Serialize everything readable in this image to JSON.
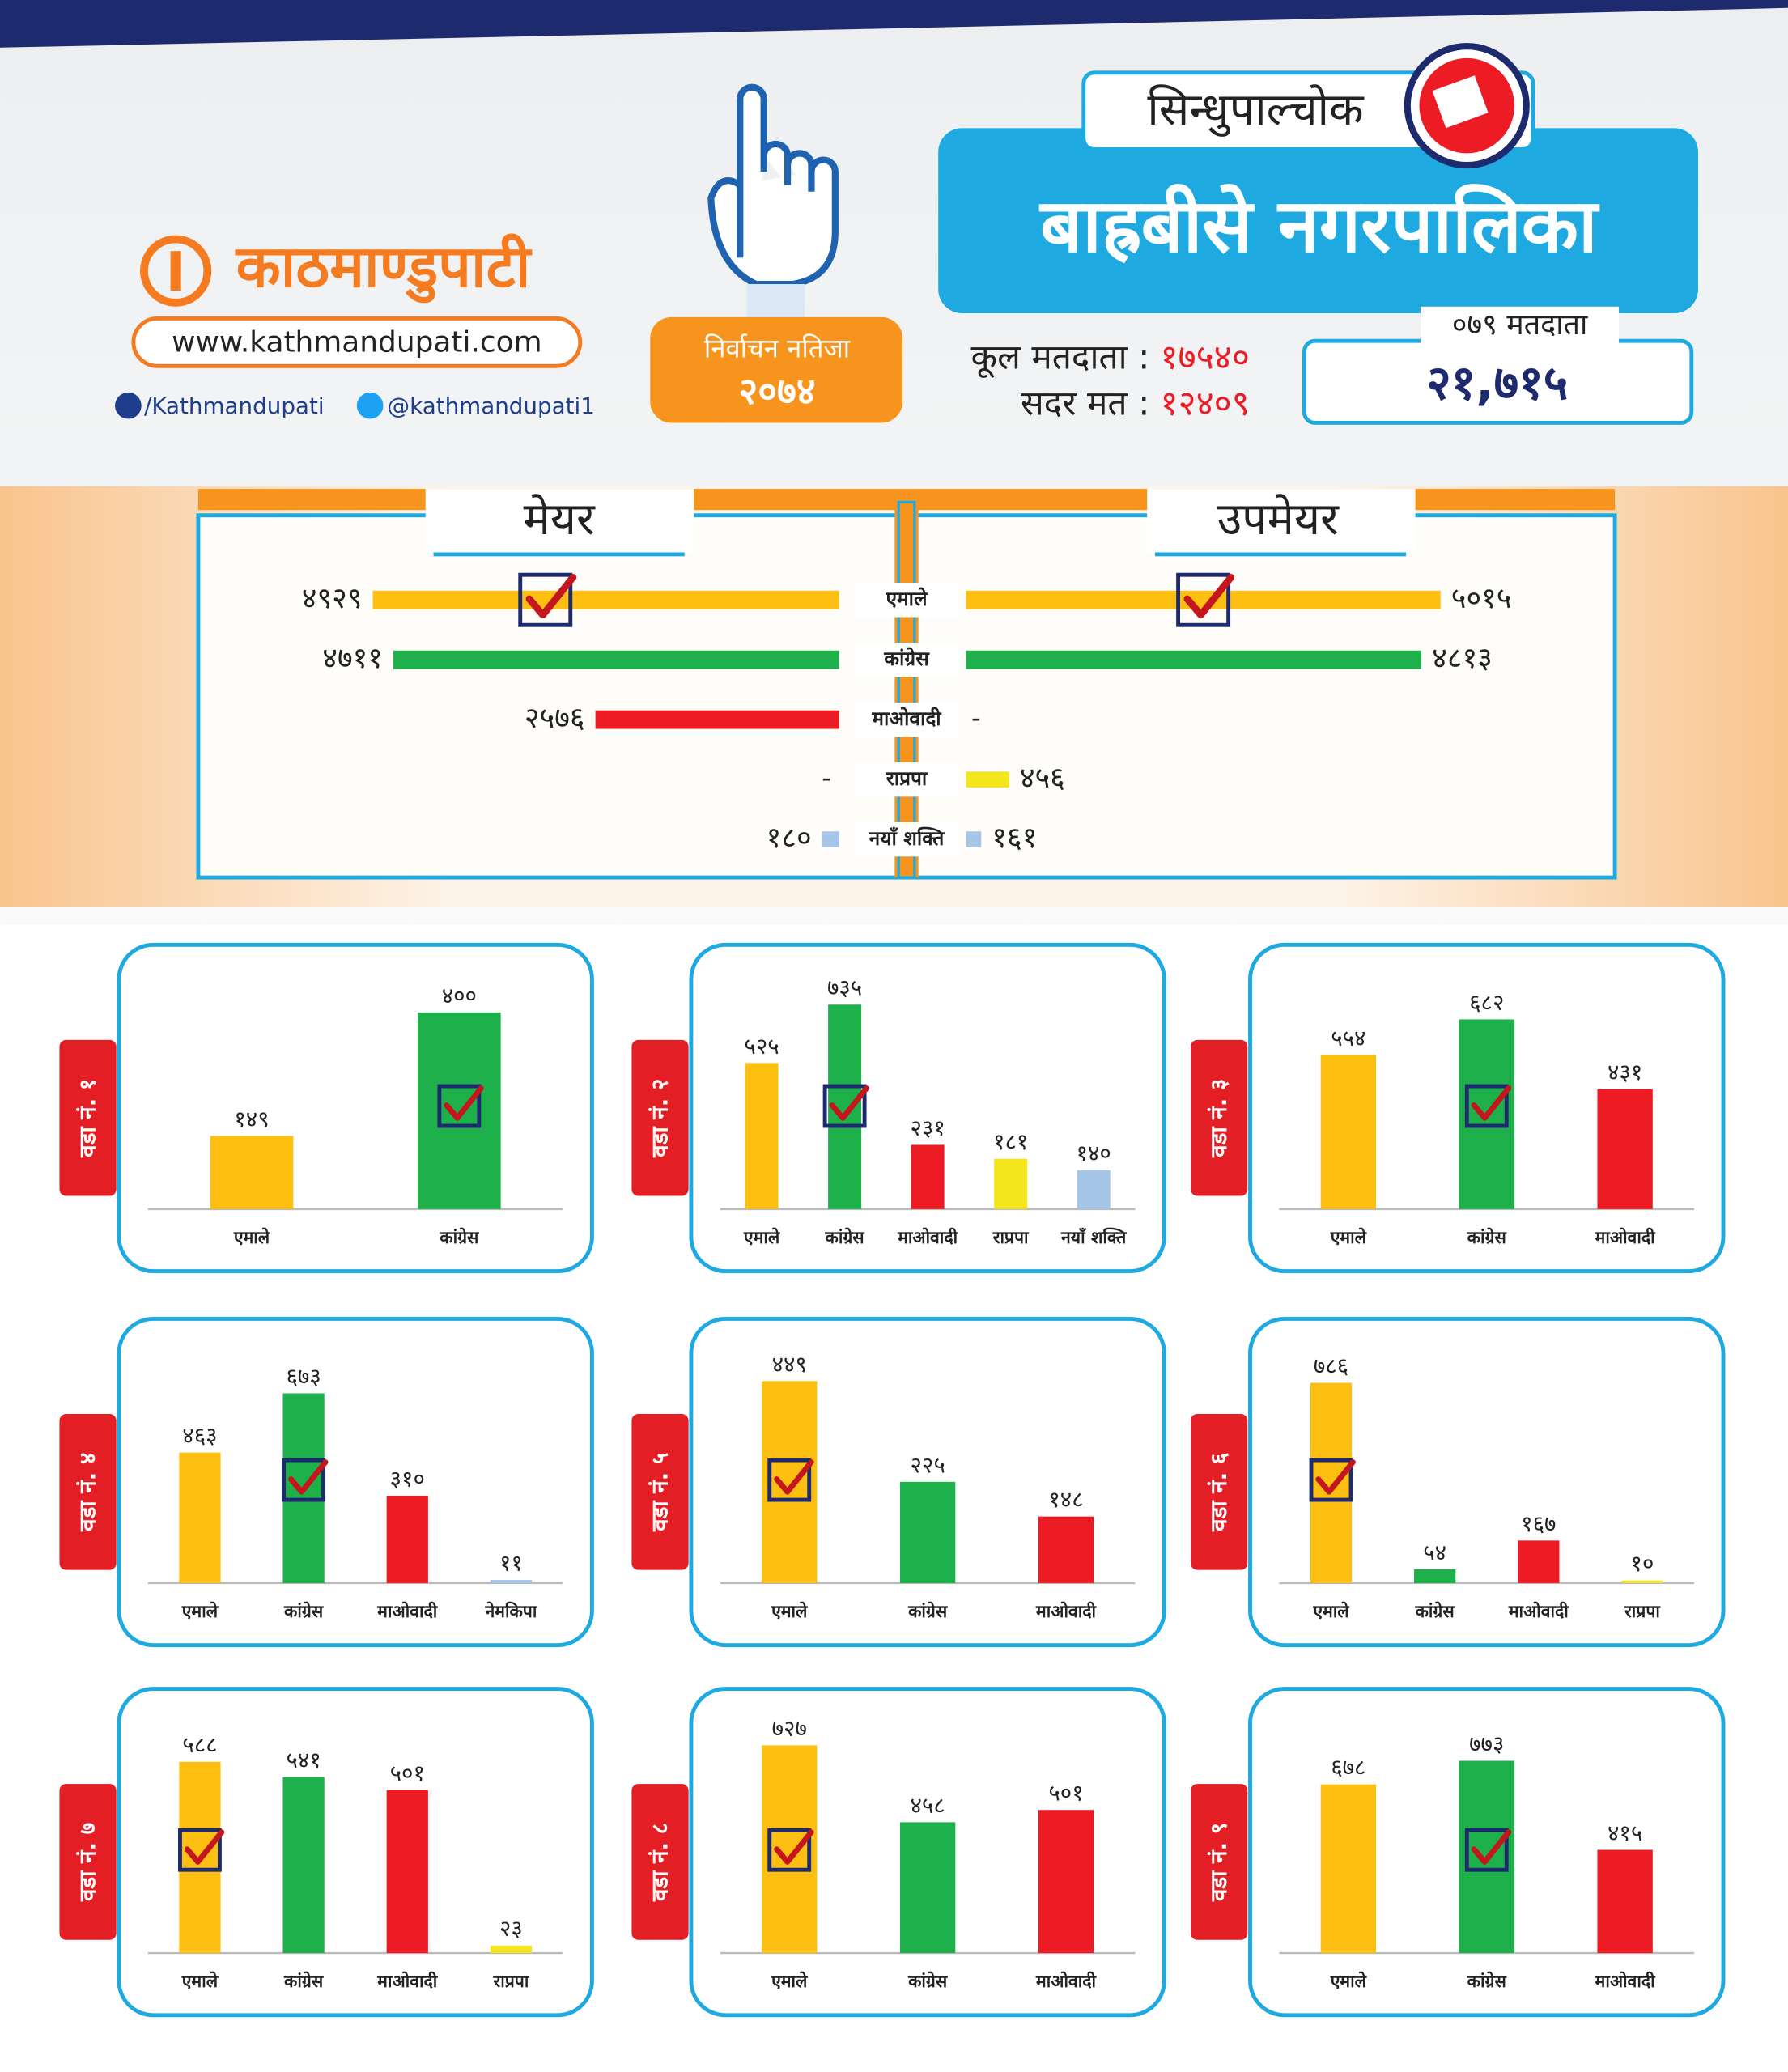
{
  "header": {
    "logo": "काठमाण्डुपाटी",
    "website": "www.kathmandupati.com",
    "facebook": "/Kathmandupati",
    "twitter": "@kathmandupati1",
    "badge_title": "निर्वाचन नतिजा",
    "badge_year": "२०७४",
    "district": "सिन्धुपाल्चोक",
    "municipality": "बाह्रबीसे नगरपालिका",
    "total_voters_label": "कूल मतदाता :",
    "total_voters": "१७५४०",
    "valid_votes_label": "सदर मत :",
    "valid_votes": "१२४०९",
    "voters_079_label": "०७९ मतदाता",
    "voters_079": "२१,७१५"
  },
  "chart_data": [
    {
      "type": "butterfly",
      "categories": [
        "एमाले",
        "कांग्रेस",
        "माओवादी",
        "राप्रपा",
        "नयाँ शक्ति"
      ],
      "colors": [
        "#fcbf12",
        "#1db04b",
        "#ed1c24",
        "#f3e61c",
        "#a6c6e8"
      ],
      "xlim": [
        0,
        5000
      ],
      "series": [
        {
          "name": "मेयर",
          "values": [
            4929,
            4711,
            2576,
            null,
            180
          ],
          "value_labels": [
            "४९२९",
            "४७११",
            "२५७६",
            "-",
            "१८०"
          ],
          "winner": 0
        },
        {
          "name": "उपमेयर",
          "values": [
            5015,
            4813,
            null,
            456,
            161
          ],
          "value_labels": [
            "५०१५",
            "४८१३",
            "-",
            "४५६",
            "१६१"
          ],
          "winner": 0
        }
      ]
    },
    {
      "type": "bar",
      "title": "वडा नं. १",
      "categories": [
        "एमाले",
        "कांग्रेस"
      ],
      "values": [
        149,
        400
      ],
      "value_labels": [
        "१४९",
        "४००"
      ],
      "colors": [
        "#fcbf12",
        "#1db04b"
      ],
      "winner": 1,
      "ylim": [
        0,
        430
      ]
    },
    {
      "type": "bar",
      "title": "वडा नं. २",
      "categories": [
        "एमाले",
        "कांग्रेस",
        "माओवादी",
        "राप्रपा",
        "नयाँ शक्ति"
      ],
      "values": [
        525,
        735,
        231,
        181,
        140
      ],
      "value_labels": [
        "५२५",
        "७३५",
        "२३१",
        "१८१",
        "१४०"
      ],
      "colors": [
        "#fcbf12",
        "#1db04b",
        "#ed1c24",
        "#f3e61c",
        "#a6c6e8"
      ],
      "winner": 1,
      "ylim": [
        0,
        760
      ]
    },
    {
      "type": "bar",
      "title": "वडा नं. ३",
      "categories": [
        "एमाले",
        "कांग्रेस",
        "माओवादी"
      ],
      "values": [
        554,
        682,
        431
      ],
      "value_labels": [
        "५५४",
        "६८२",
        "४३१"
      ],
      "colors": [
        "#fcbf12",
        "#1db04b",
        "#ed1c24"
      ],
      "winner": 1,
      "ylim": [
        0,
        760
      ]
    },
    {
      "type": "bar",
      "title": "वडा नं. ४",
      "categories": [
        "एमाले",
        "कांग्रेस",
        "माओवादी",
        "नेमकिपा"
      ],
      "values": [
        463,
        673,
        310,
        11
      ],
      "value_labels": [
        "४६३",
        "६७३",
        "३१०",
        "११"
      ],
      "colors": [
        "#fcbf12",
        "#1db04b",
        "#ed1c24",
        "#a6c6e8"
      ],
      "winner": 1,
      "ylim": [
        0,
        750
      ]
    },
    {
      "type": "bar",
      "title": "वडा नं. ५",
      "categories": [
        "एमाले",
        "कांग्रेस",
        "माओवादी"
      ],
      "values": [
        449,
        225,
        148
      ],
      "value_labels": [
        "४४९",
        "२२५",
        "१४८"
      ],
      "colors": [
        "#fcbf12",
        "#1db04b",
        "#ed1c24"
      ],
      "winner": 0,
      "ylim": [
        0,
        470
      ]
    },
    {
      "type": "bar",
      "title": "वडा नं. ६",
      "categories": [
        "एमाले",
        "कांग्रेस",
        "माओवादी",
        "राप्रपा"
      ],
      "values": [
        786,
        54,
        167,
        10
      ],
      "value_labels": [
        "७८६",
        "५४",
        "१६७",
        "१०"
      ],
      "colors": [
        "#fcbf12",
        "#1db04b",
        "#ed1c24",
        "#f3e61c"
      ],
      "winner": 0,
      "ylim": [
        0,
        830
      ]
    },
    {
      "type": "bar",
      "title": "वडा नं. ७",
      "categories": [
        "एमाले",
        "कांग्रेस",
        "माओवादी",
        "राप्रपा"
      ],
      "values": [
        588,
        541,
        501,
        23
      ],
      "value_labels": [
        "५८८",
        "५४१",
        "५०१",
        "२३"
      ],
      "colors": [
        "#fcbf12",
        "#1db04b",
        "#ed1c24",
        "#f3e61c"
      ],
      "winner": 0,
      "ylim": [
        0,
        650
      ]
    },
    {
      "type": "bar",
      "title": "वडा नं. ८",
      "categories": [
        "एमाले",
        "कांग्रेस",
        "माओवादी"
      ],
      "values": [
        727,
        458,
        501
      ],
      "value_labels": [
        "७२७",
        "४५८",
        "५०१"
      ],
      "colors": [
        "#fcbf12",
        "#1db04b",
        "#ed1c24"
      ],
      "winner": 0,
      "ylim": [
        0,
        740
      ]
    },
    {
      "type": "bar",
      "title": "वडा नं. ९",
      "categories": [
        "एमाले",
        "कांग्रेस",
        "माओवादी"
      ],
      "values": [
        678,
        773,
        415
      ],
      "value_labels": [
        "६७८",
        "७७३",
        "४१५"
      ],
      "colors": [
        "#fcbf12",
        "#1db04b",
        "#ed1c24"
      ],
      "winner": 1,
      "ylim": [
        0,
        850
      ]
    }
  ]
}
